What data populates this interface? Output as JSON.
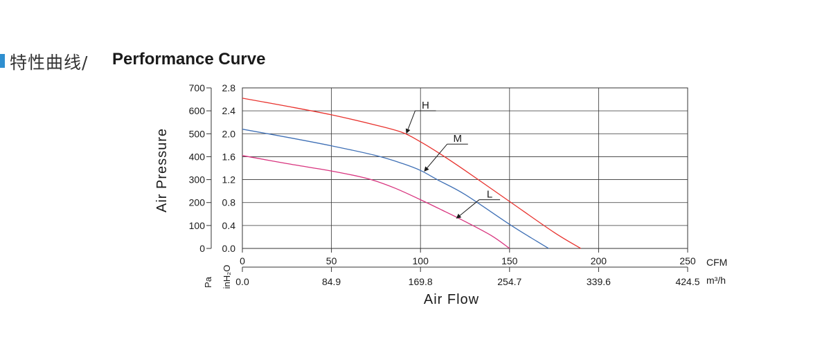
{
  "header": {
    "title_cn": "特性曲线/",
    "title_en": "Performance Curve",
    "accent_color": "#2f8fd0"
  },
  "chart_data": {
    "type": "line",
    "title": "",
    "ylabel": "Air Pressure",
    "xlabel": "Air Flow",
    "xlim": [
      0,
      250
    ],
    "ylim_pa": [
      0,
      700
    ],
    "ylim_inh2o": [
      0.0,
      2.8
    ],
    "grid": true,
    "x_ticks_cfm": [
      "0",
      "50",
      "100",
      "150",
      "200",
      "250"
    ],
    "x_ticks_m3h": [
      "0.0",
      "84.9",
      "169.8",
      "254.7",
      "339.6",
      "424.5"
    ],
    "y_ticks_pa": [
      "0",
      "100",
      "200",
      "300",
      "400",
      "500",
      "600",
      "700"
    ],
    "y_ticks_inh2o": [
      "0.0",
      "0.4",
      "0.8",
      "1.2",
      "1.6",
      "2.0",
      "2.4",
      "2.8"
    ],
    "unit_cfm": "CFM",
    "unit_m3h": "m³/h",
    "unit_pa": "Pa",
    "unit_inh2o": "inH₂O",
    "series": [
      {
        "name": "H",
        "color": "#e8322d",
        "x": [
          0,
          25,
          50,
          75,
          90,
          100,
          110,
          125,
          150,
          175,
          190
        ],
        "y": [
          2.62,
          2.48,
          2.33,
          2.15,
          2.02,
          1.86,
          1.67,
          1.36,
          0.82,
          0.28,
          0.0
        ]
      },
      {
        "name": "M",
        "color": "#3e6fb5",
        "x": [
          0,
          25,
          50,
          75,
          90,
          100,
          110,
          125,
          150,
          165,
          172
        ],
        "y": [
          2.08,
          1.94,
          1.79,
          1.62,
          1.48,
          1.36,
          1.19,
          0.94,
          0.42,
          0.13,
          0.0
        ]
      },
      {
        "name": "L",
        "color": "#d8337e",
        "x": [
          0,
          25,
          50,
          70,
          85,
          100,
          112,
          125,
          140,
          150
        ],
        "y": [
          1.62,
          1.48,
          1.35,
          1.22,
          1.06,
          0.85,
          0.67,
          0.47,
          0.22,
          0.0
        ]
      }
    ],
    "labels": [
      {
        "text": "H",
        "at_x": 92,
        "at_y": 2.0,
        "label_x": 97,
        "label_y": 2.4
      },
      {
        "text": "M",
        "at_x": 102,
        "at_y": 1.34,
        "label_x": 115,
        "label_y": 1.82
      },
      {
        "text": "L",
        "at_x": 120,
        "at_y": 0.52,
        "label_x": 133,
        "label_y": 0.85
      }
    ]
  }
}
